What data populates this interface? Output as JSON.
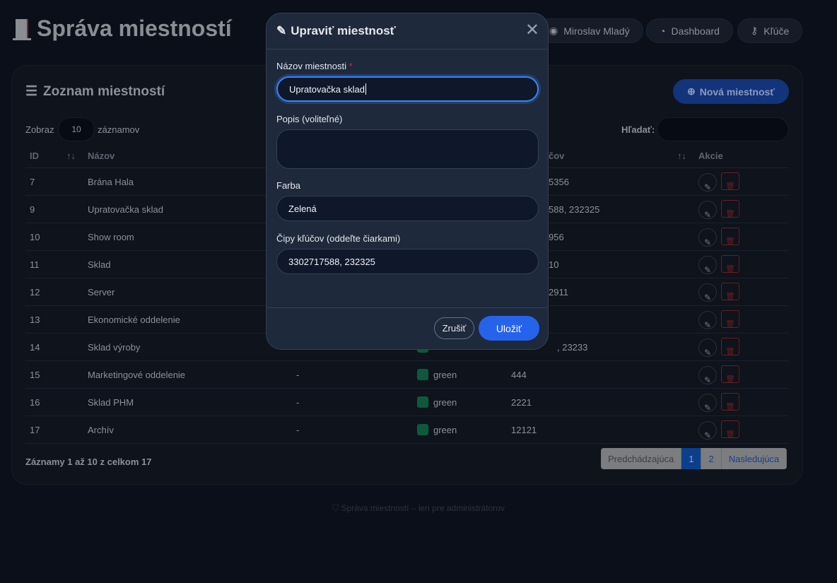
{
  "header": {
    "title": "Správa miestností",
    "user": "Miroslav Mladý",
    "dashboard": "Dashboard",
    "keys": "Kľúče"
  },
  "list": {
    "title": "Zoznam miestností",
    "new_button": "Nová miestnosť",
    "show_prefix": "Zobraz",
    "show_value": "10",
    "show_suffix": "záznamov",
    "search_label": "Hľadať:",
    "search_value": "",
    "columns": {
      "id": "ID",
      "name": "Názov",
      "chips": "čov",
      "actions": "Akcie"
    },
    "rows": [
      {
        "id": "7",
        "name": "Brána Hala",
        "desc": "",
        "color": "",
        "chips": "5356"
      },
      {
        "id": "9",
        "name": "Upratovačka sklad",
        "desc": "",
        "color": "",
        "chips": "588, 232325"
      },
      {
        "id": "10",
        "name": "Show room",
        "desc": "",
        "color": "",
        "chips": "956"
      },
      {
        "id": "11",
        "name": "Sklad",
        "desc": "",
        "color": "",
        "chips": "10"
      },
      {
        "id": "12",
        "name": "Server",
        "desc": "",
        "color": "",
        "chips": "2911"
      },
      {
        "id": "13",
        "name": "Ekonomické oddelenie",
        "desc": "",
        "color": "",
        "chips": ""
      },
      {
        "id": "14",
        "name": "Sklad výroby",
        "desc": "",
        "color": "",
        "chips": ", 23233"
      },
      {
        "id": "15",
        "name": "Marketingové oddelenie",
        "desc": "-",
        "color": "green",
        "chips": "444"
      },
      {
        "id": "16",
        "name": "Sklad PHM",
        "desc": "-",
        "color": "green",
        "chips": "2221"
      },
      {
        "id": "17",
        "name": "Archív",
        "desc": "-",
        "color": "green",
        "chips": "12121"
      }
    ],
    "info": "Záznamy 1 až 10 z celkom 17",
    "pagination": {
      "prev": "Predchádzajúca",
      "pages": [
        "1",
        "2"
      ],
      "current": "1",
      "next": "Nasledujúca"
    }
  },
  "footer": "Správa miestností – len pre administrátorov",
  "modal": {
    "title": "Upraviť miestnosť",
    "name_label": "Názov miestnosti",
    "required": "*",
    "name_value": "Upratovačka sklad",
    "desc_label": "Popis (voliteľné)",
    "desc_value": "",
    "color_label": "Farba",
    "color_value": "Zelená",
    "chips_label": "Čipy kľúčov (oddeľte čiarkami)",
    "chips_value": "3302717588, 232325",
    "cancel": "Zrušiť",
    "save": "Uložiť"
  },
  "colors": {
    "accent": "#2563eb",
    "swatch_green": "#0b5a3c",
    "danger": "#dc2626"
  }
}
